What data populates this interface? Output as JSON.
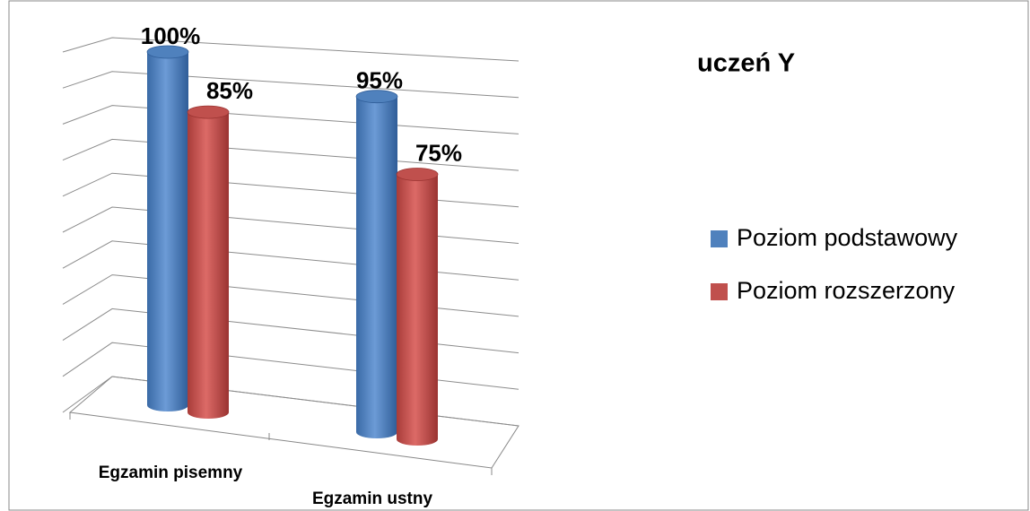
{
  "chart_data": {
    "type": "bar3d",
    "title": "uczeń Y",
    "categories": [
      "Egzamin pisemny",
      "Egzamin ustny"
    ],
    "series": [
      {
        "name": "Poziom podstawowy",
        "color": "#4f81bd",
        "values": [
          100,
          95
        ],
        "value_labels": [
          "100%",
          "95%"
        ]
      },
      {
        "name": "Poziom rozszerzony",
        "color": "#c0504d",
        "values": [
          85,
          75
        ],
        "value_labels": [
          "85%",
          "75%"
        ]
      }
    ],
    "ylim": [
      0,
      100
    ],
    "yticks": [
      0,
      10,
      20,
      30,
      40,
      50,
      60,
      70,
      80,
      90,
      100
    ],
    "grid": true
  }
}
